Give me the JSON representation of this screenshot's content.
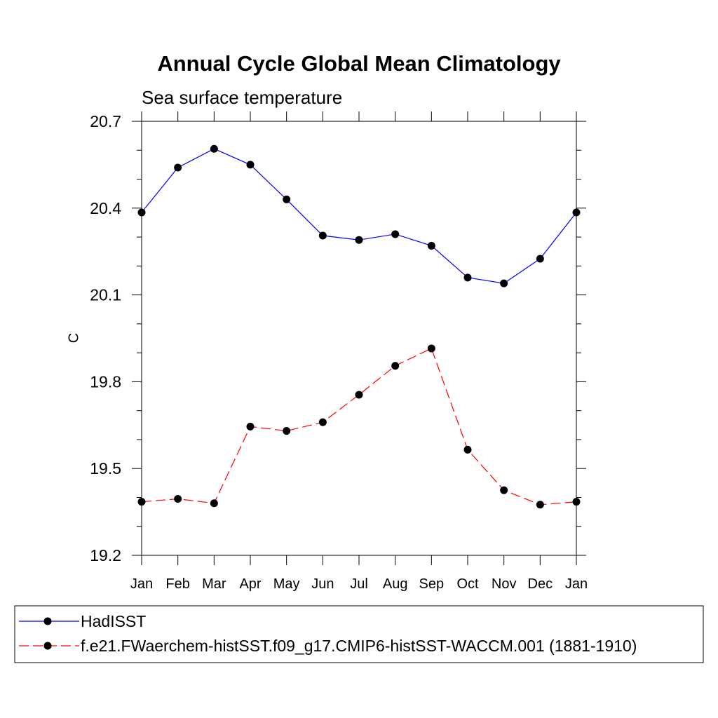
{
  "chart_data": {
    "type": "line",
    "title": "Annual Cycle Global Mean Climatology",
    "subtitle": "Sea surface temperature",
    "xlabel": "",
    "ylabel": "C",
    "categories": [
      "Jan",
      "Feb",
      "Mar",
      "Apr",
      "May",
      "Jun",
      "Jul",
      "Aug",
      "Sep",
      "Oct",
      "Nov",
      "Dec",
      "Jan"
    ],
    "ylim": [
      19.2,
      20.7
    ],
    "yticks": [
      "20.7",
      "20.4",
      "20.1",
      "19.8",
      "19.5",
      "19.2"
    ],
    "grid": false,
    "legend_position": "bottom",
    "series": [
      {
        "name": "HadISST",
        "color": "#0000ff",
        "line_style": "solid",
        "marker": "filled-circle",
        "values": [
          20.385,
          20.54,
          20.605,
          20.55,
          20.43,
          20.305,
          20.29,
          20.31,
          20.27,
          20.16,
          20.14,
          20.225,
          20.385
        ]
      },
      {
        "name": "f.e21.FWaerchem-histSST.f09_g17.CMIP6-histSST-WACCM.001 (1881-1910)",
        "color": "#ff0000",
        "line_style": "dashed",
        "marker": "filled-circle",
        "values": [
          19.385,
          19.395,
          19.38,
          19.645,
          19.63,
          19.66,
          19.755,
          19.855,
          19.915,
          19.565,
          19.425,
          19.375,
          19.385
        ]
      }
    ]
  }
}
